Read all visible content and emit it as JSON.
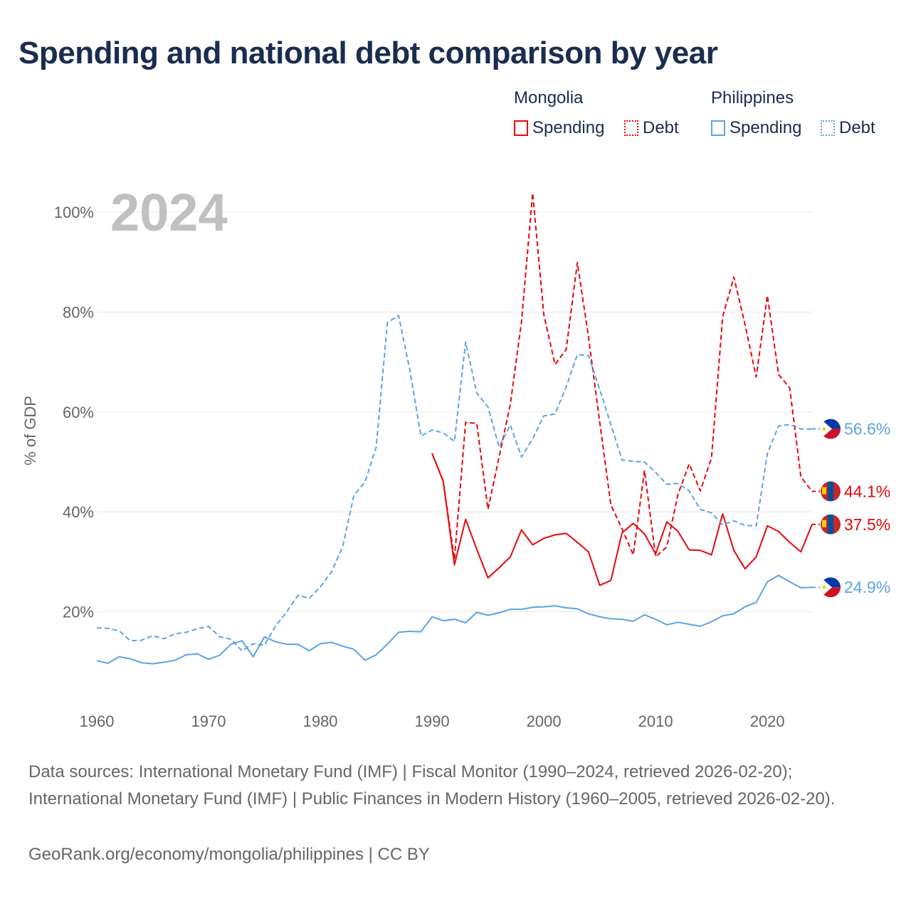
{
  "title": "Spending and national debt comparison by year",
  "legend": {
    "mongolia": {
      "label": "Mongolia",
      "spending": "Spending",
      "debt": "Debt"
    },
    "philippines": {
      "label": "Philippines",
      "spending": "Spending",
      "debt": "Debt"
    }
  },
  "colors": {
    "mongolia": "#e8070b",
    "philippines": "#5ba3e6",
    "grid": "#e6e6e6",
    "axis_text": "#666666",
    "year_watermark": "#c0c0c0"
  },
  "footer": {
    "sources": "Data sources: International Monetary Fund (IMF) | Fiscal Monitor (1990–2024, retrieved 2026-02-20); International Monetary Fund (IMF) | Public Finances in Modern History (1960–2005, retrieved 2026-02-20).",
    "credit": "GeoRank.org/economy/mongolia/philippines | CC BY"
  },
  "chart_data": {
    "type": "line",
    "current_year": "2024",
    "ylabel": "% of GDP",
    "xlabel": "",
    "xlim": [
      1960,
      2024
    ],
    "ylim": [
      0,
      105
    ],
    "xticks": [
      1960,
      1970,
      1980,
      1990,
      2000,
      2010,
      2020
    ],
    "xtick_labels": [
      "1960",
      "1970",
      "1980",
      "1990",
      "2000",
      "2010",
      "2020"
    ],
    "yticks": [
      20,
      40,
      60,
      80,
      100
    ],
    "ytick_labels": [
      "20%",
      "40%",
      "60%",
      "80%",
      "100%"
    ],
    "grid": true,
    "legend_position": "top-right",
    "series": [
      {
        "name": "Mongolia Spending",
        "country": "mongolia",
        "style": "solid",
        "end_label": "37.5%",
        "x": [
          1990,
          1991,
          1992,
          1993,
          1994,
          1995,
          1996,
          1997,
          1998,
          1999,
          2000,
          2001,
          2002,
          2003,
          2004,
          2005,
          2006,
          2007,
          2008,
          2009,
          2010,
          2011,
          2012,
          2013,
          2014,
          2015,
          2016,
          2017,
          2018,
          2019,
          2020,
          2021,
          2022,
          2023,
          2024
        ],
        "values": [
          51.7,
          46.1,
          29.4,
          38.5,
          32.5,
          26.8,
          28.8,
          31.0,
          36.4,
          33.4,
          34.7,
          35.4,
          35.7,
          33.9,
          32.0,
          25.3,
          26.3,
          35.8,
          37.7,
          35.6,
          31.6,
          38.0,
          36.1,
          32.4,
          32.3,
          31.4,
          39.6,
          32.3,
          28.6,
          31.0,
          37.2,
          36.1,
          33.9,
          32.0,
          37.5
        ]
      },
      {
        "name": "Mongolia Debt",
        "country": "mongolia",
        "style": "dashed",
        "end_label": "44.1%",
        "x": [
          1990,
          1991,
          1992,
          1993,
          1994,
          1995,
          1996,
          1997,
          1998,
          1999,
          2000,
          2001,
          2002,
          2003,
          2004,
          2005,
          2006,
          2007,
          2008,
          2009,
          2010,
          2011,
          2012,
          2013,
          2014,
          2015,
          2016,
          2017,
          2018,
          2019,
          2020,
          2021,
          2022,
          2023,
          2024
        ],
        "values": [
          51.7,
          46.1,
          30.5,
          57.9,
          57.7,
          40.5,
          51.0,
          61.5,
          78.0,
          103.8,
          79.5,
          69.5,
          72.5,
          89.9,
          75.0,
          58.0,
          41.4,
          36.6,
          31.4,
          48.3,
          31.0,
          33.0,
          43.5,
          49.6,
          44.2,
          50.8,
          79.0,
          87.0,
          77.5,
          67.0,
          83.3,
          67.5,
          64.8,
          47.0,
          44.1
        ]
      },
      {
        "name": "Philippines Spending",
        "country": "philippines",
        "style": "solid",
        "end_label": "24.9%",
        "x": [
          1960,
          1961,
          1962,
          1963,
          1964,
          1965,
          1966,
          1967,
          1968,
          1969,
          1970,
          1971,
          1972,
          1973,
          1974,
          1975,
          1976,
          1977,
          1978,
          1979,
          1980,
          1981,
          1982,
          1983,
          1984,
          1985,
          1986,
          1987,
          1988,
          1989,
          1990,
          1991,
          1992,
          1993,
          1994,
          1995,
          1996,
          1997,
          1998,
          1999,
          2000,
          2001,
          2002,
          2003,
          2004,
          2005,
          2006,
          2007,
          2008,
          2009,
          2010,
          2011,
          2012,
          2013,
          2014,
          2015,
          2016,
          2017,
          2018,
          2019,
          2020,
          2021,
          2022,
          2023,
          2024
        ],
        "values": [
          10.2,
          9.7,
          11.0,
          10.6,
          9.8,
          9.6,
          9.9,
          10.3,
          11.4,
          11.6,
          10.5,
          11.3,
          13.5,
          14.2,
          11.0,
          15.0,
          14.0,
          13.5,
          13.5,
          12.2,
          13.6,
          13.9,
          13.1,
          12.5,
          10.3,
          11.4,
          13.5,
          15.9,
          16.1,
          16.0,
          19.0,
          18.2,
          18.5,
          17.8,
          19.9,
          19.3,
          19.8,
          20.5,
          20.5,
          20.9,
          21.0,
          21.2,
          20.8,
          20.6,
          19.6,
          19.0,
          18.6,
          18.5,
          18.1,
          19.4,
          18.5,
          17.4,
          17.9,
          17.5,
          17.1,
          18.0,
          19.2,
          19.6,
          21.0,
          21.9,
          26.0,
          27.3,
          26.0,
          24.8,
          24.9
        ]
      },
      {
        "name": "Philippines Debt",
        "country": "philippines",
        "style": "dashed",
        "end_label": "56.6%",
        "x": [
          1960,
          1961,
          1962,
          1963,
          1964,
          1965,
          1966,
          1967,
          1968,
          1969,
          1970,
          1971,
          1972,
          1973,
          1974,
          1975,
          1976,
          1977,
          1978,
          1979,
          1980,
          1981,
          1982,
          1983,
          1984,
          1985,
          1986,
          1987,
          1988,
          1989,
          1990,
          1991,
          1992,
          1993,
          1994,
          1995,
          1996,
          1997,
          1998,
          1999,
          2000,
          2001,
          2002,
          2003,
          2004,
          2005,
          2006,
          2007,
          2008,
          2009,
          2010,
          2011,
          2012,
          2013,
          2014,
          2015,
          2016,
          2017,
          2018,
          2019,
          2020,
          2021,
          2022,
          2023,
          2024
        ],
        "values": [
          16.8,
          16.7,
          16.2,
          14.2,
          14.3,
          15.2,
          14.6,
          15.6,
          15.9,
          16.6,
          17.1,
          15.0,
          14.5,
          12.2,
          13.6,
          13.3,
          17.2,
          20.0,
          23.3,
          22.7,
          25.0,
          28.0,
          33.0,
          43.3,
          46.0,
          53.0,
          77.9,
          79.3,
          68.5,
          55.2,
          56.4,
          55.8,
          54.1,
          74.0,
          63.8,
          61.0,
          53.0,
          57.4,
          51.0,
          54.6,
          59.2,
          59.6,
          65.0,
          71.5,
          71.3,
          64.5,
          57.5,
          50.4,
          50.1,
          50.0,
          47.9,
          45.5,
          45.7,
          44.2,
          40.5,
          39.8,
          37.4,
          38.2,
          37.3,
          37.2,
          51.7,
          57.2,
          57.5,
          56.6,
          56.6
        ]
      }
    ]
  }
}
